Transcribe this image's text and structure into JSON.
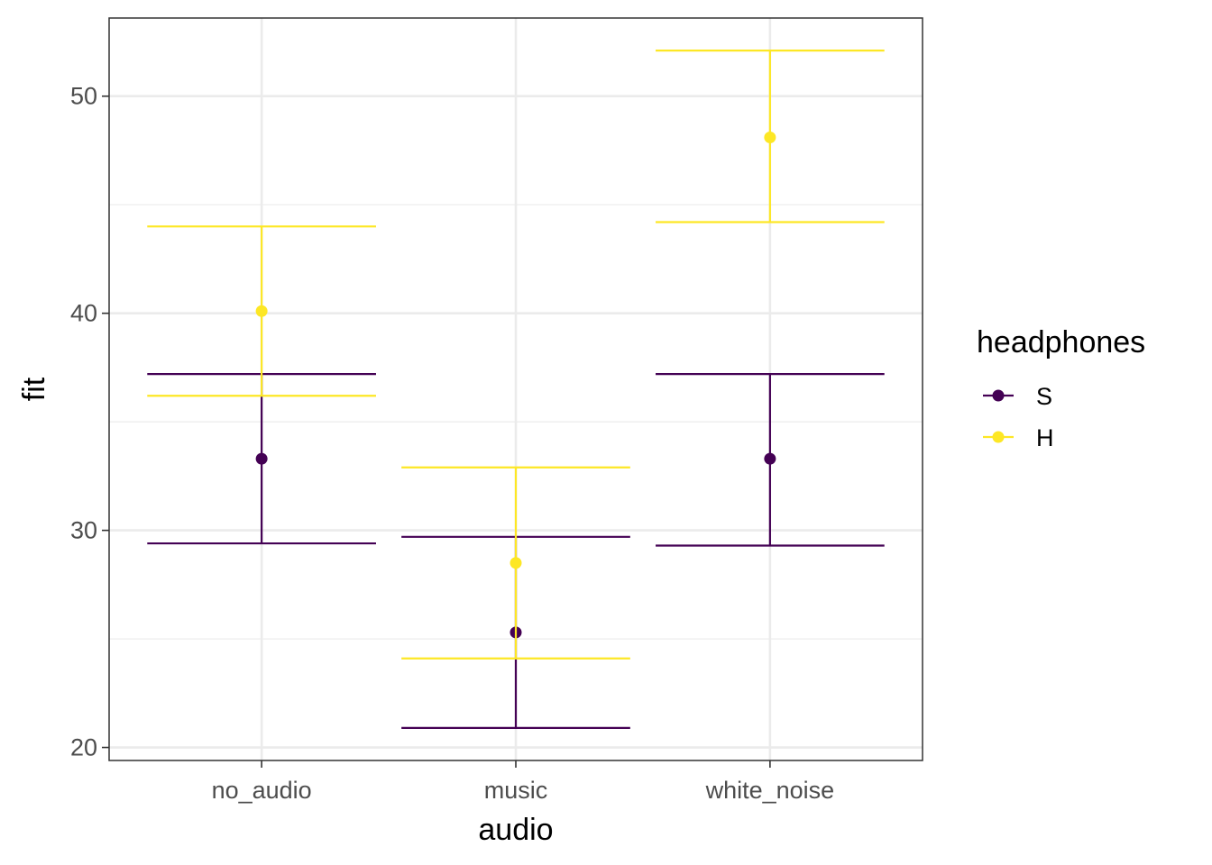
{
  "chart_data": {
    "type": "errorbar",
    "xlabel": "audio",
    "ylabel": "fit",
    "categories": [
      "no_audio",
      "music",
      "white_noise"
    ],
    "ylim": [
      19.4,
      53.6
    ],
    "y_ticks": [
      "20",
      "30",
      "40",
      "50"
    ],
    "grid": true,
    "legend": {
      "title": "headphones",
      "position": "right"
    },
    "series": [
      {
        "name": "S",
        "color": "#440154",
        "fit": [
          33.3,
          25.3,
          33.3
        ],
        "lower": [
          29.4,
          20.9,
          29.3
        ],
        "upper": [
          37.2,
          29.7,
          37.2
        ]
      },
      {
        "name": "H",
        "color": "#FDE725",
        "fit": [
          40.1,
          28.5,
          48.1
        ],
        "lower": [
          36.2,
          24.1,
          44.2
        ],
        "upper": [
          44.0,
          32.9,
          52.1
        ]
      }
    ]
  }
}
